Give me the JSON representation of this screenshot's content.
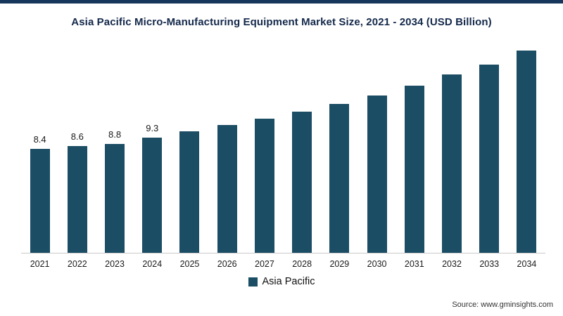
{
  "colors": {
    "top_border": "#16365c",
    "bar": "#1b4d64",
    "title_text": "#14294b",
    "axis_line": "#c9c9c9"
  },
  "source": "Source: www.gminsights.com",
  "chart_data": {
    "type": "bar",
    "title": "Asia Pacific Micro-Manufacturing Equipment Market Size, 2021 - 2034 (USD Billion)",
    "categories": [
      "2021",
      "2022",
      "2023",
      "2024",
      "2025",
      "2026",
      "2027",
      "2028",
      "2029",
      "2030",
      "2031",
      "2032",
      "2033",
      "2034"
    ],
    "values": [
      8.4,
      8.6,
      8.8,
      9.3,
      9.8,
      10.3,
      10.8,
      11.4,
      12.0,
      12.7,
      13.5,
      14.4,
      15.2,
      16.3
    ],
    "bar_labels": [
      "8.4",
      "8.6",
      "8.8",
      "9.3",
      "",
      "",
      "",
      "",
      "",
      "",
      "",
      "",
      "",
      ""
    ],
    "xlabel": "",
    "ylabel": "",
    "ylim": [
      0,
      17
    ],
    "grid": false,
    "legend": [
      "Asia Pacific"
    ],
    "legend_position": "bottom",
    "bar_color": "#1b4d64"
  }
}
